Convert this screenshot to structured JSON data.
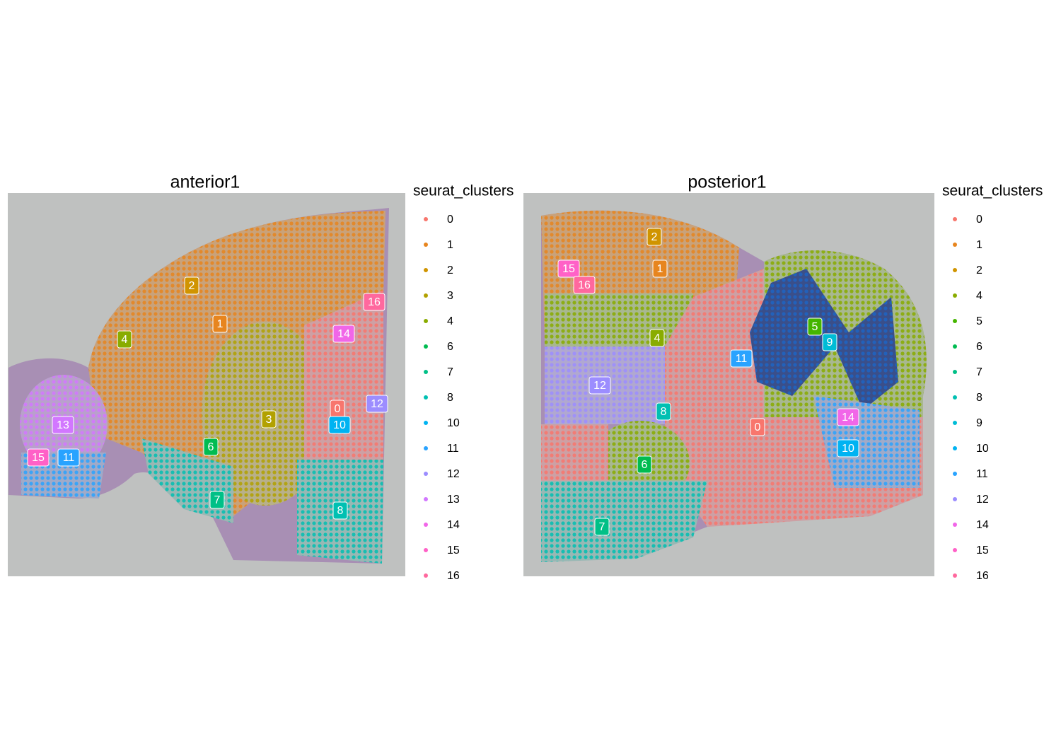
{
  "panels": [
    {
      "title": "anterior1",
      "legend_title": "seurat_clusters",
      "legend": [
        {
          "label": "0",
          "color": "#F8766D"
        },
        {
          "label": "1",
          "color": "#E7851E"
        },
        {
          "label": "2",
          "color": "#D09400"
        },
        {
          "label": "3",
          "color": "#B2A100"
        },
        {
          "label": "4",
          "color": "#89AC00"
        },
        {
          "label": "6",
          "color": "#00BC51"
        },
        {
          "label": "7",
          "color": "#00C087"
        },
        {
          "label": "8",
          "color": "#00C0B2"
        },
        {
          "label": "10",
          "color": "#00B3F2"
        },
        {
          "label": "11",
          "color": "#29A3FF"
        },
        {
          "label": "12",
          "color": "#9C8DFF"
        },
        {
          "label": "13",
          "color": "#D277FF"
        },
        {
          "label": "14",
          "color": "#F166E8"
        },
        {
          "label": "15",
          "color": "#FF61C7"
        },
        {
          "label": "16",
          "color": "#FF689E"
        }
      ],
      "labels": [
        {
          "text": "2",
          "color": "#D09400"
        },
        {
          "text": "1",
          "color": "#E7851E"
        },
        {
          "text": "4",
          "color": "#89AC00"
        },
        {
          "text": "16",
          "color": "#FF689E"
        },
        {
          "text": "14",
          "color": "#F166E8"
        },
        {
          "text": "12",
          "color": "#9C8DFF"
        },
        {
          "text": "0",
          "color": "#F8766D"
        },
        {
          "text": "10",
          "color": "#00B3F2"
        },
        {
          "text": "3",
          "color": "#B2A100"
        },
        {
          "text": "13",
          "color": "#D277FF"
        },
        {
          "text": "6",
          "color": "#00BC51"
        },
        {
          "text": "15",
          "color": "#FF61C7"
        },
        {
          "text": "11",
          "color": "#29A3FF"
        },
        {
          "text": "7",
          "color": "#00C087"
        },
        {
          "text": "8",
          "color": "#00C0B2"
        }
      ]
    },
    {
      "title": "posterior1",
      "legend_title": "seurat_clusters",
      "legend": [
        {
          "label": "0",
          "color": "#F8766D"
        },
        {
          "label": "1",
          "color": "#E7851E"
        },
        {
          "label": "2",
          "color": "#D09400"
        },
        {
          "label": "4",
          "color": "#89AC00"
        },
        {
          "label": "5",
          "color": "#45B500"
        },
        {
          "label": "6",
          "color": "#00BC51"
        },
        {
          "label": "7",
          "color": "#00C087"
        },
        {
          "label": "8",
          "color": "#00C0B2"
        },
        {
          "label": "9",
          "color": "#00BCD6"
        },
        {
          "label": "10",
          "color": "#00B3F2"
        },
        {
          "label": "11",
          "color": "#29A3FF"
        },
        {
          "label": "12",
          "color": "#9C8DFF"
        },
        {
          "label": "14",
          "color": "#F166E8"
        },
        {
          "label": "15",
          "color": "#FF61C7"
        },
        {
          "label": "16",
          "color": "#FF689E"
        }
      ],
      "labels": [
        {
          "text": "2",
          "color": "#D09400"
        },
        {
          "text": "1",
          "color": "#E7851E"
        },
        {
          "text": "15",
          "color": "#FF61C7"
        },
        {
          "text": "16",
          "color": "#FF689E"
        },
        {
          "text": "4",
          "color": "#89AC00"
        },
        {
          "text": "5",
          "color": "#45B500"
        },
        {
          "text": "9",
          "color": "#00BCD6"
        },
        {
          "text": "11",
          "color": "#29A3FF"
        },
        {
          "text": "12",
          "color": "#9C8DFF"
        },
        {
          "text": "8",
          "color": "#00C0B2"
        },
        {
          "text": "0",
          "color": "#F8766D"
        },
        {
          "text": "14",
          "color": "#F166E8"
        },
        {
          "text": "10",
          "color": "#00B3F2"
        },
        {
          "text": "6",
          "color": "#00BC51"
        },
        {
          "text": "7",
          "color": "#00C087"
        }
      ]
    }
  ]
}
